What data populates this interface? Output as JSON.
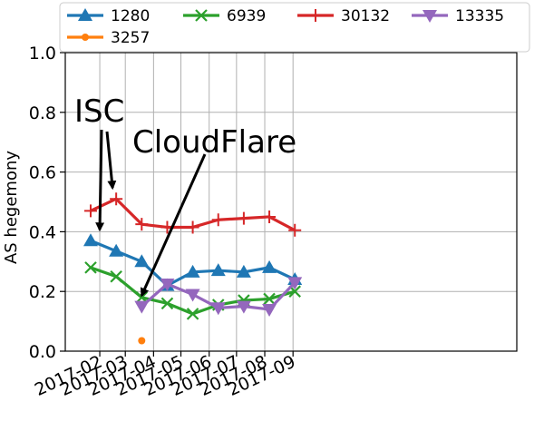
{
  "chart_data": {
    "type": "line",
    "ylabel": "AS hegemony",
    "xlabel": "",
    "ylim": [
      0.0,
      1.0
    ],
    "yticks": [
      "0.0",
      "0.2",
      "0.4",
      "0.6",
      "0.8",
      "1.0"
    ],
    "xticks": [
      "2017-02",
      "2017-03",
      "2017-04",
      "2017-05",
      "2017-06",
      "2017-07",
      "2017-08",
      "2017-09"
    ],
    "grid": true,
    "legend_position": "top",
    "series": [
      {
        "name": "1280",
        "color": "#1f77b4",
        "marker": "triangle-up",
        "points": [
          {
            "x": "2017-01-22",
            "y": 0.37
          },
          {
            "x": "2017-02-19",
            "y": 0.335
          },
          {
            "x": "2017-03-19",
            "y": 0.3
          },
          {
            "x": "2017-04-16",
            "y": 0.22
          },
          {
            "x": "2017-05-14",
            "y": 0.265
          },
          {
            "x": "2017-06-11",
            "y": 0.27
          },
          {
            "x": "2017-07-09",
            "y": 0.265
          },
          {
            "x": "2017-08-06",
            "y": 0.28
          },
          {
            "x": "2017-09-03",
            "y": 0.24
          }
        ]
      },
      {
        "name": "6939",
        "color": "#2ca02c",
        "marker": "x",
        "points": [
          {
            "x": "2017-01-22",
            "y": 0.28
          },
          {
            "x": "2017-02-19",
            "y": 0.25
          },
          {
            "x": "2017-03-19",
            "y": 0.18
          },
          {
            "x": "2017-04-16",
            "y": 0.16
          },
          {
            "x": "2017-05-14",
            "y": 0.125
          },
          {
            "x": "2017-06-11",
            "y": 0.155
          },
          {
            "x": "2017-07-09",
            "y": 0.17
          },
          {
            "x": "2017-08-06",
            "y": 0.175
          },
          {
            "x": "2017-09-03",
            "y": 0.2
          }
        ]
      },
      {
        "name": "30132",
        "color": "#d62728",
        "marker": "plus",
        "points": [
          {
            "x": "2017-01-22",
            "y": 0.47
          },
          {
            "x": "2017-02-19",
            "y": 0.51
          },
          {
            "x": "2017-03-19",
            "y": 0.425
          },
          {
            "x": "2017-04-16",
            "y": 0.415
          },
          {
            "x": "2017-05-14",
            "y": 0.415
          },
          {
            "x": "2017-06-11",
            "y": 0.44
          },
          {
            "x": "2017-07-09",
            "y": 0.445
          },
          {
            "x": "2017-08-06",
            "y": 0.45
          },
          {
            "x": "2017-09-03",
            "y": 0.405
          }
        ]
      },
      {
        "name": "13335",
        "color": "#9467bd",
        "marker": "triangle-down",
        "points": [
          {
            "x": "2017-03-19",
            "y": 0.15
          },
          {
            "x": "2017-04-16",
            "y": 0.225
          },
          {
            "x": "2017-05-14",
            "y": 0.19
          },
          {
            "x": "2017-06-11",
            "y": 0.145
          },
          {
            "x": "2017-07-09",
            "y": 0.15
          },
          {
            "x": "2017-08-06",
            "y": 0.14
          },
          {
            "x": "2017-09-03",
            "y": 0.23
          }
        ]
      },
      {
        "name": "3257",
        "color": "#ff7f0e",
        "marker": "dot",
        "points": [
          {
            "x": "2017-03-19",
            "y": 0.035
          }
        ]
      }
    ],
    "annotations": [
      {
        "text": "ISC",
        "targets": [
          {
            "x": "2017-01-22",
            "y": 0.37
          },
          {
            "x": "2017-02-19",
            "y": 0.51
          }
        ]
      },
      {
        "text": "CloudFlare",
        "targets": [
          {
            "x": "2017-03-19",
            "y": 0.15
          }
        ]
      }
    ]
  }
}
